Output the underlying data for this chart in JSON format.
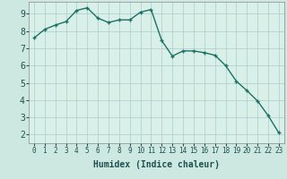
{
  "x": [
    0,
    1,
    2,
    3,
    4,
    5,
    6,
    7,
    8,
    9,
    10,
    11,
    12,
    13,
    14,
    15,
    16,
    17,
    18,
    19,
    20,
    21,
    22,
    23
  ],
  "y": [
    7.6,
    8.1,
    8.35,
    8.55,
    9.2,
    9.35,
    8.75,
    8.5,
    8.65,
    8.65,
    9.1,
    9.25,
    7.45,
    6.55,
    6.85,
    6.85,
    6.75,
    6.6,
    6.0,
    5.1,
    4.55,
    3.95,
    3.1,
    2.1
  ],
  "line_color": "#1e7063",
  "marker": "+",
  "marker_size": 3.5,
  "marker_linewidth": 1.0,
  "linewidth": 1.0,
  "background_color": "#cce8e0",
  "plot_bg_color": "#d8f0e8",
  "grid_color": "#aacccc",
  "grid_linewidth": 0.5,
  "xlabel": "Humidex (Indice chaleur)",
  "xlabel_fontsize": 7,
  "ylim": [
    1.5,
    9.7
  ],
  "xlim": [
    -0.5,
    23.5
  ],
  "yticks": [
    2,
    3,
    4,
    5,
    6,
    7,
    8,
    9
  ],
  "ytick_fontsize": 7,
  "xtick_fontsize": 5.5,
  "xticks": [
    0,
    1,
    2,
    3,
    4,
    5,
    6,
    7,
    8,
    9,
    10,
    11,
    12,
    13,
    14,
    15,
    16,
    17,
    18,
    19,
    20,
    21,
    22,
    23
  ]
}
